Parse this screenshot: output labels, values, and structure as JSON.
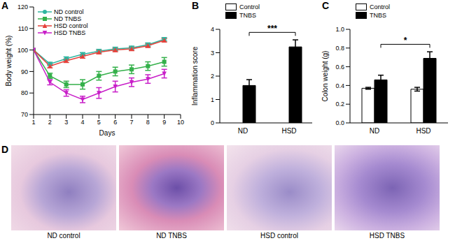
{
  "chart_data": [
    {
      "type": "line",
      "title": "A",
      "x_label": "Days",
      "y_label": "Body weight (%)",
      "x": [
        1,
        2,
        3,
        4,
        5,
        6,
        7,
        8,
        9
      ],
      "xlim": [
        1,
        10
      ],
      "xticks": [
        1,
        2,
        3,
        4,
        5,
        6,
        7,
        8,
        9,
        10
      ],
      "ylim": [
        70,
        120
      ],
      "yticks": [
        70,
        80,
        90,
        100,
        110,
        120
      ],
      "legend": "upper left",
      "series": [
        {
          "name": "ND control",
          "color": "#2fb5a0",
          "marker": "circle",
          "values": [
            100,
            93.5,
            96,
            98,
            99.5,
            100.5,
            101,
            102.5,
            105
          ],
          "errors": [
            0,
            0.8,
            0.8,
            0.8,
            0.8,
            0.8,
            0.8,
            0.8,
            0.8
          ]
        },
        {
          "name": "ND TNBS",
          "color": "#34b04a",
          "marker": "square",
          "values": [
            100,
            88,
            84,
            84,
            88,
            90,
            91,
            92.5,
            94.5
          ],
          "errors": [
            0,
            1.2,
            1.5,
            2.2,
            2,
            2,
            2,
            2,
            2
          ]
        },
        {
          "name": "HSD control",
          "color": "#e5403a",
          "marker": "triangle",
          "values": [
            100,
            92.5,
            95,
            97,
            99,
            100,
            100.5,
            102,
            104.5
          ],
          "errors": [
            0,
            0.8,
            0.8,
            0.8,
            0.8,
            0.8,
            0.8,
            0.8,
            0.8
          ]
        },
        {
          "name": "HSD TNBS",
          "color": "#c81ec8",
          "marker": "triangle-down",
          "values": [
            100,
            85,
            80,
            77,
            80,
            83,
            85,
            86.5,
            89
          ],
          "errors": [
            0,
            1.2,
            1.5,
            1.5,
            2.5,
            2.5,
            2,
            2,
            2
          ]
        }
      ]
    },
    {
      "type": "bar",
      "title": "B",
      "y_label": "Inflammation score",
      "categories": [
        "ND",
        "HSD"
      ],
      "ylim": [
        0,
        4
      ],
      "yticks": [
        0,
        1,
        2,
        3,
        4
      ],
      "legend": "upper left",
      "series": [
        {
          "name": "Control",
          "color": "#ffffff",
          "values": [
            0,
            0
          ]
        },
        {
          "name": "TNBS",
          "color": "#000000",
          "values": [
            1.6,
            3.25
          ],
          "errors": [
            0.25,
            0.3
          ]
        }
      ],
      "annotations": [
        {
          "text": "***",
          "between": [
            "ND",
            "HSD"
          ],
          "series": "TNBS"
        }
      ]
    },
    {
      "type": "bar",
      "title": "C",
      "y_label": "Colon weight (g)",
      "categories": [
        "ND",
        "HSD"
      ],
      "ylim": [
        0,
        1
      ],
      "yticks": [
        {
          "value": 0,
          "label": "0.0"
        },
        0.2,
        0.4,
        0.6,
        0.8,
        {
          "value": 1,
          "label": "1.0"
        }
      ],
      "legend": "upper left",
      "series": [
        {
          "name": "Control",
          "color": "#ffffff",
          "values": [
            0.37,
            0.36
          ],
          "errors": [
            0.01,
            0.02
          ]
        },
        {
          "name": "TNBS",
          "color": "#000000",
          "values": [
            0.46,
            0.69
          ],
          "errors": [
            0.05,
            0.07
          ]
        }
      ],
      "annotations": [
        {
          "text": "*",
          "between": [
            "ND",
            "HSD"
          ],
          "series": "TNBS"
        }
      ]
    }
  ],
  "images": {
    "title": "D",
    "captions": [
      "ND control",
      "ND TNBS",
      "HSD control",
      "HSD TNBS"
    ]
  }
}
